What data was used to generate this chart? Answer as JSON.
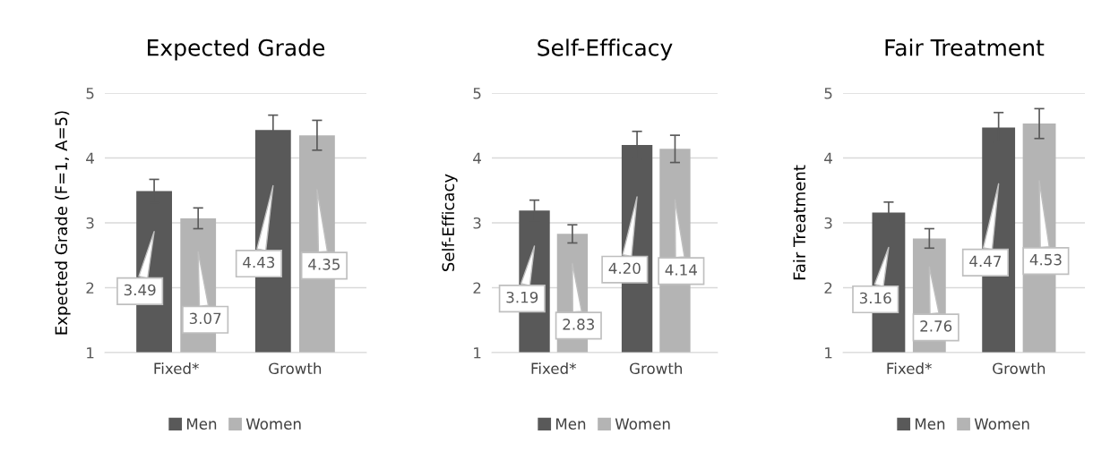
{
  "chart_data": [
    {
      "type": "bar",
      "title": "Expected Grade",
      "ylabel": "Expected Grade (F=1, A=5)",
      "categories": [
        "Fixed*",
        "Growth"
      ],
      "ylim": [
        1,
        5
      ],
      "yticks": [
        1,
        2,
        3,
        4,
        5
      ],
      "grid": "y",
      "legend": "bottom",
      "series": [
        {
          "name": "Men",
          "color": "#595959",
          "values": [
            3.49,
            4.43
          ],
          "errors": [
            0.18,
            0.23
          ],
          "value_labels": [
            "3.49",
            "4.43"
          ]
        },
        {
          "name": "Women",
          "color": "#b4b4b4",
          "values": [
            3.07,
            4.35
          ],
          "errors": [
            0.16,
            0.23
          ],
          "value_labels": [
            "3.07",
            "4.35"
          ]
        }
      ]
    },
    {
      "type": "bar",
      "title": "Self-Efficacy",
      "ylabel": "Self-Efficacy",
      "categories": [
        "Fixed*",
        "Growth"
      ],
      "ylim": [
        1,
        5
      ],
      "yticks": [
        1,
        2,
        3,
        4,
        5
      ],
      "grid": "y",
      "legend": "bottom",
      "series": [
        {
          "name": "Men",
          "color": "#595959",
          "values": [
            3.19,
            4.2
          ],
          "errors": [
            0.16,
            0.21
          ],
          "value_labels": [
            "3.19",
            "4.20"
          ]
        },
        {
          "name": "Women",
          "color": "#b4b4b4",
          "values": [
            2.83,
            4.14
          ],
          "errors": [
            0.14,
            0.21
          ],
          "value_labels": [
            "2.83",
            "4.14"
          ]
        }
      ]
    },
    {
      "type": "bar",
      "title": "Fair Treatment",
      "ylabel": "Fair Treatment",
      "categories": [
        "Fixed*",
        "Growth"
      ],
      "ylim": [
        1,
        5
      ],
      "yticks": [
        1,
        2,
        3,
        4,
        5
      ],
      "grid": "y",
      "legend": "bottom",
      "series": [
        {
          "name": "Men",
          "color": "#595959",
          "values": [
            3.16,
            4.47
          ],
          "errors": [
            0.16,
            0.23
          ],
          "value_labels": [
            "3.16",
            "4.47"
          ]
        },
        {
          "name": "Women",
          "color": "#b4b4b4",
          "values": [
            2.76,
            4.53
          ],
          "errors": [
            0.15,
            0.23
          ],
          "value_labels": [
            "2.76",
            "4.53"
          ]
        }
      ]
    }
  ]
}
